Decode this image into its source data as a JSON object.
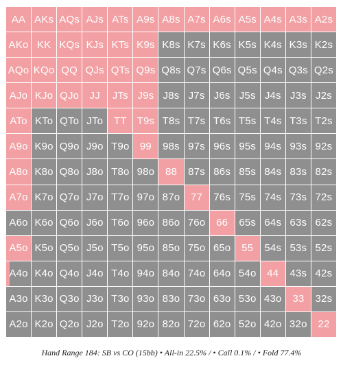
{
  "colors": {
    "allin": "#f2a0a3",
    "fold": "#8f8f8f",
    "text": "#ffffff"
  },
  "ranks": [
    "A",
    "K",
    "Q",
    "J",
    "T",
    "9",
    "8",
    "7",
    "6",
    "5",
    "4",
    "3",
    "2"
  ],
  "allin_fraction": [
    [
      1,
      1,
      1,
      1,
      1,
      1,
      1,
      1,
      1,
      1,
      1,
      1,
      1
    ],
    [
      1,
      1,
      1,
      1,
      1,
      1,
      0,
      0,
      0,
      0,
      0,
      0,
      0
    ],
    [
      1,
      1,
      1,
      1,
      1,
      1,
      0,
      0,
      0,
      0,
      0,
      0,
      0
    ],
    [
      1,
      1,
      1,
      1,
      1,
      1,
      0,
      0,
      0,
      0,
      0,
      0,
      0
    ],
    [
      1,
      0,
      0,
      0,
      1,
      1,
      0,
      0,
      0,
      0,
      0,
      0,
      0
    ],
    [
      1,
      0,
      0,
      0,
      0,
      1,
      0,
      0,
      0,
      0,
      0,
      0,
      0
    ],
    [
      1,
      0,
      0,
      0,
      0,
      0,
      1,
      0,
      0,
      0,
      0,
      0,
      0
    ],
    [
      1,
      0,
      0,
      0,
      0,
      0,
      0,
      1,
      0,
      0,
      0,
      0,
      0
    ],
    [
      0,
      0,
      0,
      0,
      0,
      0,
      0,
      0,
      1,
      0,
      0,
      0,
      0
    ],
    [
      1,
      0,
      0,
      0,
      0,
      0,
      0,
      0,
      0,
      1,
      0,
      0,
      0
    ],
    [
      0.15,
      0,
      0,
      0,
      0,
      0,
      0,
      0,
      0,
      0,
      1,
      0,
      0
    ],
    [
      0,
      0,
      0,
      0,
      0,
      0,
      0,
      0,
      0,
      0,
      0,
      1,
      0
    ],
    [
      0,
      0,
      0,
      0,
      0,
      0,
      0,
      0,
      0,
      0,
      0,
      0,
      1
    ]
  ],
  "caption": "Hand Range 184: SB vs CO (15bb) • All-in 22.5% / • Call 0.1% / • Fold 77.4%"
}
